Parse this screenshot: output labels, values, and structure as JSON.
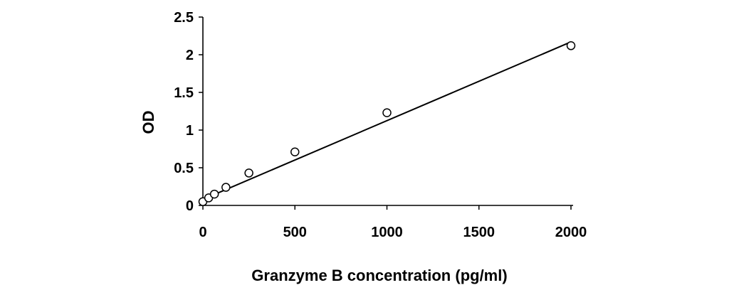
{
  "chart_data": {
    "type": "scatter",
    "title": "",
    "xlabel": "Granzyme B concentration (pg/ml)",
    "ylabel": "OD",
    "xlim": [
      0,
      2000
    ],
    "ylim": [
      0,
      2.5
    ],
    "x_ticks": [
      "0",
      "500",
      "1000",
      "1500",
      "2000"
    ],
    "y_ticks": [
      "0",
      "0.5",
      "1",
      "1.5",
      "2",
      "2.5"
    ],
    "grid": false,
    "legend": "none",
    "series": [
      {
        "x": [
          0,
          31.25,
          62.5,
          125,
          250,
          500,
          1000,
          2000
        ],
        "y": [
          0.05,
          0.1,
          0.15,
          0.24,
          0.43,
          0.71,
          1.23,
          2.12
        ],
        "marker": "open-circle"
      }
    ],
    "trendline": {
      "type": "linear",
      "x": [
        0,
        2000
      ],
      "y": [
        0.08,
        2.17
      ]
    },
    "colors": {
      "axis": "#000000",
      "marker_stroke": "#000000",
      "marker_fill": "#ffffff",
      "trendline": "#000000"
    }
  }
}
